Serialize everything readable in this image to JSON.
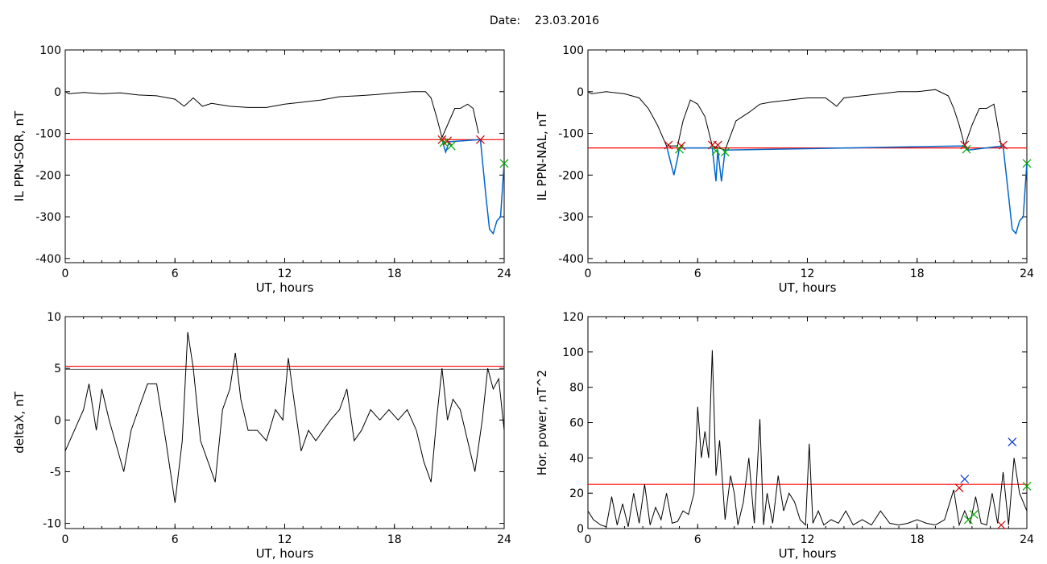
{
  "date_label": "Date:",
  "date_value": "23.03.2016",
  "chart_data": [
    {
      "type": "line",
      "ylabel": "IL PPN-SOR, nT",
      "xlabel": "UT, hours",
      "xlim": [
        0,
        24
      ],
      "ylim": [
        -410,
        100
      ],
      "xticks": [
        0,
        6,
        12,
        18,
        24
      ],
      "yticks": [
        -400,
        -300,
        -200,
        -100,
        0,
        100
      ],
      "grid": false,
      "series": [
        {
          "line_color": "#000000",
          "x": [
            0,
            0.2,
            1,
            2,
            3,
            4,
            5,
            6,
            6.5,
            7,
            7.5,
            8,
            9,
            10,
            11,
            12,
            13,
            14,
            15,
            16,
            17,
            18,
            19,
            19.7,
            20.0,
            20.3,
            20.6,
            21.0,
            21.3,
            21.6,
            22.0,
            22.3,
            22.6
          ],
          "y": [
            0,
            -5,
            -2,
            -5,
            -3,
            -8,
            -10,
            -18,
            -35,
            -15,
            -35,
            -28,
            -35,
            -38,
            -38,
            -30,
            -25,
            -20,
            -12,
            -10,
            -7,
            -3,
            0,
            0,
            -15,
            -60,
            -110,
            -70,
            -40,
            -40,
            -30,
            -40,
            -100
          ]
        },
        {
          "line_color": "#0066cc",
          "x": [
            20.6,
            20.8,
            21.0,
            22.7,
            23.0,
            23.2,
            23.4,
            23.6,
            23.8,
            24.0
          ],
          "y": [
            -115,
            -145,
            -120,
            -115,
            -250,
            -330,
            -340,
            -310,
            -300,
            -170
          ]
        }
      ],
      "threshold": -115,
      "threshold_color": "#ff0000",
      "markers": [
        {
          "x": 20.6,
          "y": -115,
          "color": "#cc0000"
        },
        {
          "x": 20.9,
          "y": -118,
          "color": "#cc0000"
        },
        {
          "x": 20.7,
          "y": -122,
          "color": "#00aa00"
        },
        {
          "x": 21.1,
          "y": -130,
          "color": "#00aa00"
        },
        {
          "x": 22.7,
          "y": -115,
          "color": "#cc0000"
        },
        {
          "x": 24.0,
          "y": -172,
          "color": "#00aa00"
        }
      ]
    },
    {
      "type": "line",
      "ylabel": "IL PPN-NAL, nT",
      "xlabel": "UT, hours",
      "xlim": [
        0,
        24
      ],
      "ylim": [
        -410,
        100
      ],
      "xticks": [
        0,
        6,
        12,
        18,
        24
      ],
      "yticks": [
        -400,
        -300,
        -200,
        -100,
        0,
        100
      ],
      "grid": false,
      "series": [
        {
          "line_color": "#000000",
          "x": [
            0,
            0.2,
            1,
            2,
            2.8,
            3.3,
            3.8,
            4.3,
            4.9,
            5.2,
            5.6,
            6.0,
            6.4,
            6.8,
            7.5,
            8.1,
            8.8,
            9.4,
            10,
            11,
            12,
            13,
            13.6,
            14,
            15,
            16,
            17,
            18,
            19,
            19.7,
            20.0,
            20.3,
            20.6,
            21.0,
            21.4,
            21.8,
            22.2,
            22.6
          ],
          "y": [
            0,
            -5,
            0,
            -5,
            -15,
            -40,
            -80,
            -130,
            -130,
            -70,
            -20,
            -30,
            -60,
            -130,
            -140,
            -70,
            -50,
            -30,
            -25,
            -20,
            -15,
            -15,
            -35,
            -15,
            -10,
            -5,
            0,
            0,
            5,
            -10,
            -40,
            -80,
            -130,
            -80,
            -40,
            -40,
            -30,
            -130
          ]
        },
        {
          "line_color": "#0066cc",
          "x": [
            4.3,
            4.7,
            4.9,
            5.0,
            6.8,
            7.0,
            7.1,
            7.3,
            7.5,
            20.6,
            20.8,
            22.7,
            23.0,
            23.2,
            23.4,
            23.6,
            23.8,
            24.0
          ],
          "y": [
            -130,
            -200,
            -160,
            -135,
            -135,
            -215,
            -140,
            -215,
            -140,
            -130,
            -140,
            -130,
            -250,
            -330,
            -340,
            -310,
            -300,
            -170
          ]
        }
      ],
      "threshold": -135,
      "threshold_color": "#ff0000",
      "markers": [
        {
          "x": 4.4,
          "y": -128,
          "color": "#cc0000"
        },
        {
          "x": 5.1,
          "y": -130,
          "color": "#cc0000"
        },
        {
          "x": 5.0,
          "y": -138,
          "color": "#00aa00"
        },
        {
          "x": 6.8,
          "y": -128,
          "color": "#cc0000"
        },
        {
          "x": 7.1,
          "y": -128,
          "color": "#cc0000"
        },
        {
          "x": 7.0,
          "y": -142,
          "color": "#00aa00"
        },
        {
          "x": 7.5,
          "y": -145,
          "color": "#00aa00"
        },
        {
          "x": 20.6,
          "y": -128,
          "color": "#cc0000"
        },
        {
          "x": 20.7,
          "y": -138,
          "color": "#00aa00"
        },
        {
          "x": 22.7,
          "y": -128,
          "color": "#cc0000"
        },
        {
          "x": 24.0,
          "y": -172,
          "color": "#00aa00"
        }
      ]
    },
    {
      "type": "line",
      "ylabel": "deltaX, nT",
      "xlabel": "UT, hours",
      "xlim": [
        0,
        24
      ],
      "ylim": [
        -10.5,
        10
      ],
      "xticks": [
        0,
        6,
        12,
        18,
        24
      ],
      "yticks": [
        -10,
        -5,
        0,
        5,
        10
      ],
      "grid": false,
      "series": [
        {
          "line_color": "#000000",
          "x": [
            0,
            0.5,
            1.0,
            1.3,
            1.7,
            2.0,
            2.4,
            2.8,
            3.2,
            3.6,
            4.0,
            4.5,
            5.0,
            5.5,
            6.0,
            6.4,
            6.7,
            7.0,
            7.4,
            7.8,
            8.2,
            8.6,
            9.0,
            9.3,
            9.6,
            10.0,
            10.5,
            11.0,
            11.5,
            11.9,
            12.2,
            12.5,
            12.9,
            13.3,
            13.7,
            14.1,
            14.5,
            15.0,
            15.4,
            15.8,
            16.2,
            16.7,
            17.2,
            17.7,
            18.2,
            18.7,
            19.2,
            19.6,
            20.0,
            20.3,
            20.6,
            20.9,
            21.2,
            21.6,
            22.0,
            22.4,
            22.8,
            23.1,
            23.4,
            23.7,
            24.0
          ],
          "y": [
            -3,
            -1,
            1,
            3.5,
            -1,
            3,
            0,
            -2.5,
            -5,
            -1,
            1,
            3.5,
            3.5,
            -2,
            -8,
            -2,
            8.5,
            5,
            -2,
            -4,
            -6,
            1,
            3,
            6.5,
            2,
            -1,
            -1,
            -2,
            1,
            0,
            6,
            2,
            -3,
            -1,
            -2,
            -1,
            0,
            1,
            3,
            -2,
            -1,
            1,
            0,
            1,
            0,
            1,
            -1,
            -4,
            -6,
            0,
            5,
            0,
            2,
            1,
            -2,
            -5,
            0,
            5,
            3,
            4,
            -1
          ]
        }
      ],
      "threshold": 5.2,
      "threshold_color": "#ff0000",
      "threshold2": 4.9,
      "threshold2_color": "#555555",
      "markers": []
    },
    {
      "type": "line",
      "ylabel": "Hor. power, nT^2",
      "xlabel": "UT, hours",
      "xlim": [
        0,
        24
      ],
      "ylim": [
        0,
        120
      ],
      "xticks": [
        0,
        6,
        12,
        18,
        24
      ],
      "yticks": [
        0,
        20,
        40,
        60,
        80,
        100,
        120
      ],
      "grid": false,
      "series": [
        {
          "line_color": "#000000",
          "x": [
            0,
            0.3,
            0.7,
            1.0,
            1.3,
            1.6,
            1.9,
            2.2,
            2.5,
            2.8,
            3.1,
            3.4,
            3.7,
            4.0,
            4.3,
            4.6,
            4.9,
            5.2,
            5.5,
            5.8,
            6.0,
            6.2,
            6.4,
            6.6,
            6.8,
            7.0,
            7.2,
            7.5,
            7.8,
            8.0,
            8.2,
            8.5,
            8.8,
            9.1,
            9.4,
            9.6,
            9.8,
            10.1,
            10.4,
            10.7,
            11.0,
            11.3,
            11.6,
            11.9,
            12.1,
            12.3,
            12.6,
            12.9,
            13.3,
            13.7,
            14.1,
            14.5,
            15.0,
            15.5,
            16.0,
            16.5,
            17.0,
            17.5,
            18.0,
            18.5,
            19.0,
            19.5,
            20.0,
            20.3,
            20.6,
            20.9,
            21.2,
            21.5,
            21.8,
            22.1,
            22.4,
            22.7,
            23.0,
            23.3,
            23.6,
            24.0
          ],
          "y": [
            10,
            5,
            2,
            1,
            18,
            2,
            14,
            1,
            20,
            3,
            25,
            2,
            12,
            5,
            20,
            3,
            4,
            10,
            8,
            20,
            69,
            40,
            55,
            40,
            101,
            30,
            50,
            5,
            30,
            20,
            2,
            15,
            40,
            3,
            62,
            2,
            20,
            3,
            30,
            10,
            20,
            15,
            5,
            2,
            48,
            3,
            10,
            2,
            5,
            3,
            10,
            2,
            5,
            2,
            10,
            3,
            2,
            3,
            5,
            3,
            2,
            5,
            22,
            2,
            10,
            3,
            18,
            3,
            2,
            20,
            3,
            32,
            2,
            40,
            20,
            10
          ]
        }
      ],
      "threshold": 25,
      "threshold_color": "#ff0000",
      "markers": [
        {
          "x": 20.3,
          "y": 23,
          "color": "#cc0000"
        },
        {
          "x": 20.6,
          "y": 28,
          "color": "#0033cc"
        },
        {
          "x": 20.8,
          "y": 5,
          "color": "#00aa00"
        },
        {
          "x": 21.1,
          "y": 8,
          "color": "#00aa00"
        },
        {
          "x": 22.6,
          "y": 2,
          "color": "#cc0000"
        },
        {
          "x": 23.2,
          "y": 49,
          "color": "#0033cc"
        },
        {
          "x": 24.0,
          "y": 24,
          "color": "#00aa00"
        }
      ]
    }
  ]
}
